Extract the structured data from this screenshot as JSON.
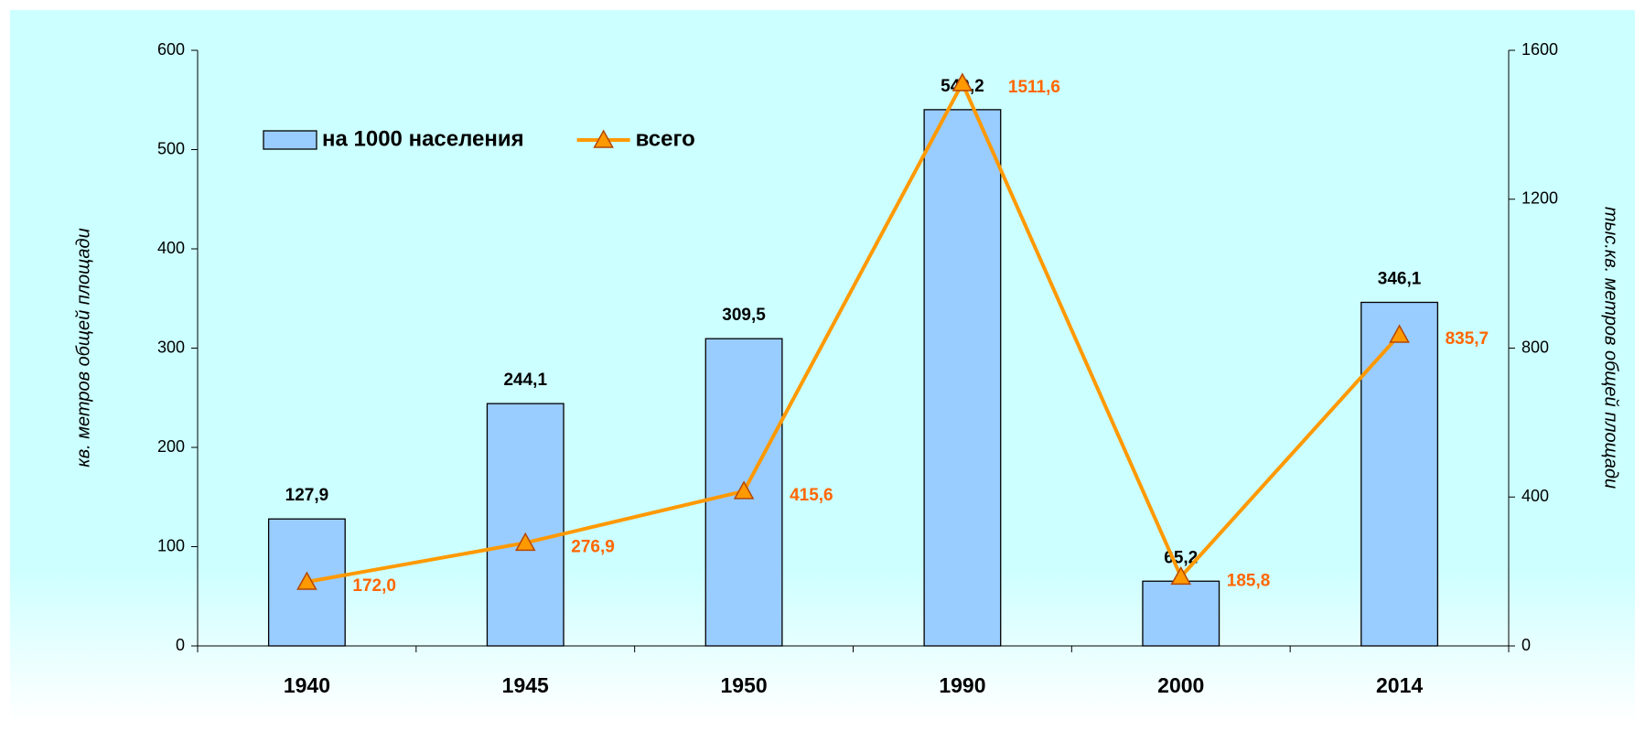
{
  "chart_data": {
    "type": "bar",
    "categories": [
      "1940",
      "1945",
      "1950",
      "1990",
      "2000",
      "2014"
    ],
    "series": [
      {
        "name": "на 1000 населения",
        "type": "bar",
        "color": "#99ccff",
        "values": [
          127.9,
          244.1,
          309.5,
          540.2,
          65.2,
          346.1
        ],
        "value_labels": [
          "127,9",
          "244,1",
          "309,5",
          "540,2",
          "65,2",
          "346,1"
        ]
      },
      {
        "name": "всего",
        "type": "line",
        "axis": "y2",
        "color": "#ff9900",
        "values": [
          172.0,
          276.9,
          415.6,
          1511.6,
          185.8,
          835.7
        ],
        "value_labels": [
          "172,0",
          "276,9",
          "415,6",
          "1511,6",
          "185,8",
          "835,7"
        ]
      }
    ],
    "ylabel": "кв. метров общей площади",
    "y2label": "тыс.кв. метров общей площади",
    "ylim": [
      0,
      600
    ],
    "yticks": [
      0,
      100,
      200,
      300,
      400,
      500,
      600
    ],
    "y2lim": [
      0,
      1600
    ],
    "y2ticks": [
      0,
      400,
      800,
      1200,
      1600
    ],
    "legend": "top-left"
  }
}
